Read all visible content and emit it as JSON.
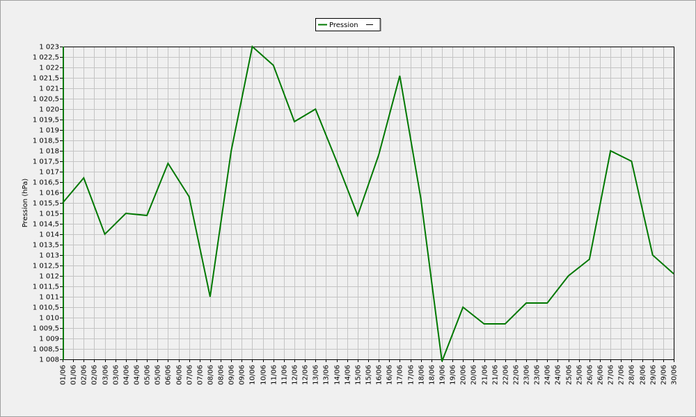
{
  "chart_data": {
    "type": "line",
    "y_label": "Pression (hPa)",
    "x": [
      1,
      2,
      3,
      4,
      5,
      6,
      7,
      8,
      9,
      10,
      11,
      12,
      13,
      14,
      15,
      16,
      17,
      18,
      19,
      20,
      21,
      22,
      23,
      24,
      25,
      26,
      27,
      28,
      29,
      30
    ],
    "series": [
      {
        "name": "Pression",
        "color": "#007800",
        "values": [
          1015.5,
          1016.7,
          1014,
          1015,
          1014.9,
          1017.4,
          1015.8,
          1011,
          1018,
          1023,
          1022.1,
          1019.4,
          1020,
          1017.5,
          1014.9,
          1017.8,
          1021.6,
          1015.7,
          1007.9,
          1010.5,
          1009.7,
          1009.7,
          1010.7,
          1010.7,
          1012,
          1012.8,
          1018,
          1017.5,
          1013,
          1012.1
        ]
      }
    ],
    "xlim": [
      1,
      30
    ],
    "xticks": [
      {
        "value": 1,
        "label": "01/06"
      },
      {
        "value": 1.5,
        "label": "01/06"
      },
      {
        "value": 2,
        "label": "02/06"
      },
      {
        "value": 2.5,
        "label": "02/06"
      },
      {
        "value": 3,
        "label": "03/06"
      },
      {
        "value": 3.5,
        "label": "03/06"
      },
      {
        "value": 4,
        "label": "04/06"
      },
      {
        "value": 4.5,
        "label": "04/06"
      },
      {
        "value": 5,
        "label": "05/06"
      },
      {
        "value": 5.5,
        "label": "05/06"
      },
      {
        "value": 6,
        "label": "06/06"
      },
      {
        "value": 6.5,
        "label": "06/06"
      },
      {
        "value": 7,
        "label": "07/06"
      },
      {
        "value": 7.5,
        "label": "07/06"
      },
      {
        "value": 8,
        "label": "08/06"
      },
      {
        "value": 8.5,
        "label": "08/06"
      },
      {
        "value": 9,
        "label": "09/06"
      },
      {
        "value": 9.5,
        "label": "09/06"
      },
      {
        "value": 10,
        "label": "10/06"
      },
      {
        "value": 10.5,
        "label": "10/06"
      },
      {
        "value": 11,
        "label": "11/06"
      },
      {
        "value": 11.5,
        "label": "11/06"
      },
      {
        "value": 12,
        "label": "12/06"
      },
      {
        "value": 12.5,
        "label": "12/06"
      },
      {
        "value": 13,
        "label": "13/06"
      },
      {
        "value": 13.5,
        "label": "13/06"
      },
      {
        "value": 14,
        "label": "14/06"
      },
      {
        "value": 14.5,
        "label": "14/06"
      },
      {
        "value": 15,
        "label": "15/06"
      },
      {
        "value": 15.5,
        "label": "15/06"
      },
      {
        "value": 16,
        "label": "16/06"
      },
      {
        "value": 16.5,
        "label": "16/06"
      },
      {
        "value": 17,
        "label": "17/06"
      },
      {
        "value": 17.5,
        "label": "17/06"
      },
      {
        "value": 18,
        "label": "18/06"
      },
      {
        "value": 18.5,
        "label": "18/06"
      },
      {
        "value": 19,
        "label": "19/06"
      },
      {
        "value": 19.5,
        "label": "19/06"
      },
      {
        "value": 20,
        "label": "20/06"
      },
      {
        "value": 20.5,
        "label": "20/06"
      },
      {
        "value": 21,
        "label": "21/06"
      },
      {
        "value": 21.5,
        "label": "21/06"
      },
      {
        "value": 22,
        "label": "22/06"
      },
      {
        "value": 22.5,
        "label": "22/06"
      },
      {
        "value": 23,
        "label": "23/06"
      },
      {
        "value": 23.5,
        "label": "23/06"
      },
      {
        "value": 24,
        "label": "24/06"
      },
      {
        "value": 24.5,
        "label": "24/06"
      },
      {
        "value": 25,
        "label": "25/06"
      },
      {
        "value": 25.5,
        "label": "25/06"
      },
      {
        "value": 26,
        "label": "26/06"
      },
      {
        "value": 26.5,
        "label": "26/06"
      },
      {
        "value": 27,
        "label": "27/06"
      },
      {
        "value": 27.5,
        "label": "27/06"
      },
      {
        "value": 28,
        "label": "28/06"
      },
      {
        "value": 28.5,
        "label": "28/06"
      },
      {
        "value": 29,
        "label": "29/06"
      },
      {
        "value": 29.5,
        "label": "29/06"
      },
      {
        "value": 30,
        "label": "30/06"
      }
    ],
    "ylim": [
      1007.9,
      1023.1
    ],
    "yticks": [
      {
        "value": 1008,
        "label": "1 008"
      },
      {
        "value": 1008.5,
        "label": "1 008,5"
      },
      {
        "value": 1009,
        "label": "1 009"
      },
      {
        "value": 1009.5,
        "label": "1 009,5"
      },
      {
        "value": 1010,
        "label": "1 010"
      },
      {
        "value": 1010.5,
        "label": "1 010,5"
      },
      {
        "value": 1011,
        "label": "1 011"
      },
      {
        "value": 1011.5,
        "label": "1 011,5"
      },
      {
        "value": 1012,
        "label": "1 012"
      },
      {
        "value": 1012.5,
        "label": "1 012,5"
      },
      {
        "value": 1013,
        "label": "1 013"
      },
      {
        "value": 1013.5,
        "label": "1 013,5"
      },
      {
        "value": 1014,
        "label": "1 014"
      },
      {
        "value": 1014.5,
        "label": "1 014,5"
      },
      {
        "value": 1015,
        "label": "1 015"
      },
      {
        "value": 1015.5,
        "label": "1 015,5"
      },
      {
        "value": 1016,
        "label": "1 016"
      },
      {
        "value": 1016.5,
        "label": "1 016,5"
      },
      {
        "value": 1017,
        "label": "1 017"
      },
      {
        "value": 1017.5,
        "label": "1 017,5"
      },
      {
        "value": 1018,
        "label": "1 018"
      },
      {
        "value": 1018.5,
        "label": "1 018,5"
      },
      {
        "value": 1019,
        "label": "1 019"
      },
      {
        "value": 1019.5,
        "label": "1 019,5"
      },
      {
        "value": 1020,
        "label": "1 020"
      },
      {
        "value": 1020.5,
        "label": "1 020,5"
      },
      {
        "value": 1021,
        "label": "1 021"
      },
      {
        "value": 1021.5,
        "label": "1 021,5"
      },
      {
        "value": 1022,
        "label": "1 022"
      },
      {
        "value": 1022.5,
        "label": "1 022,5"
      },
      {
        "value": 1023,
        "label": "1 023"
      }
    ],
    "grid": true,
    "legend": "top"
  }
}
